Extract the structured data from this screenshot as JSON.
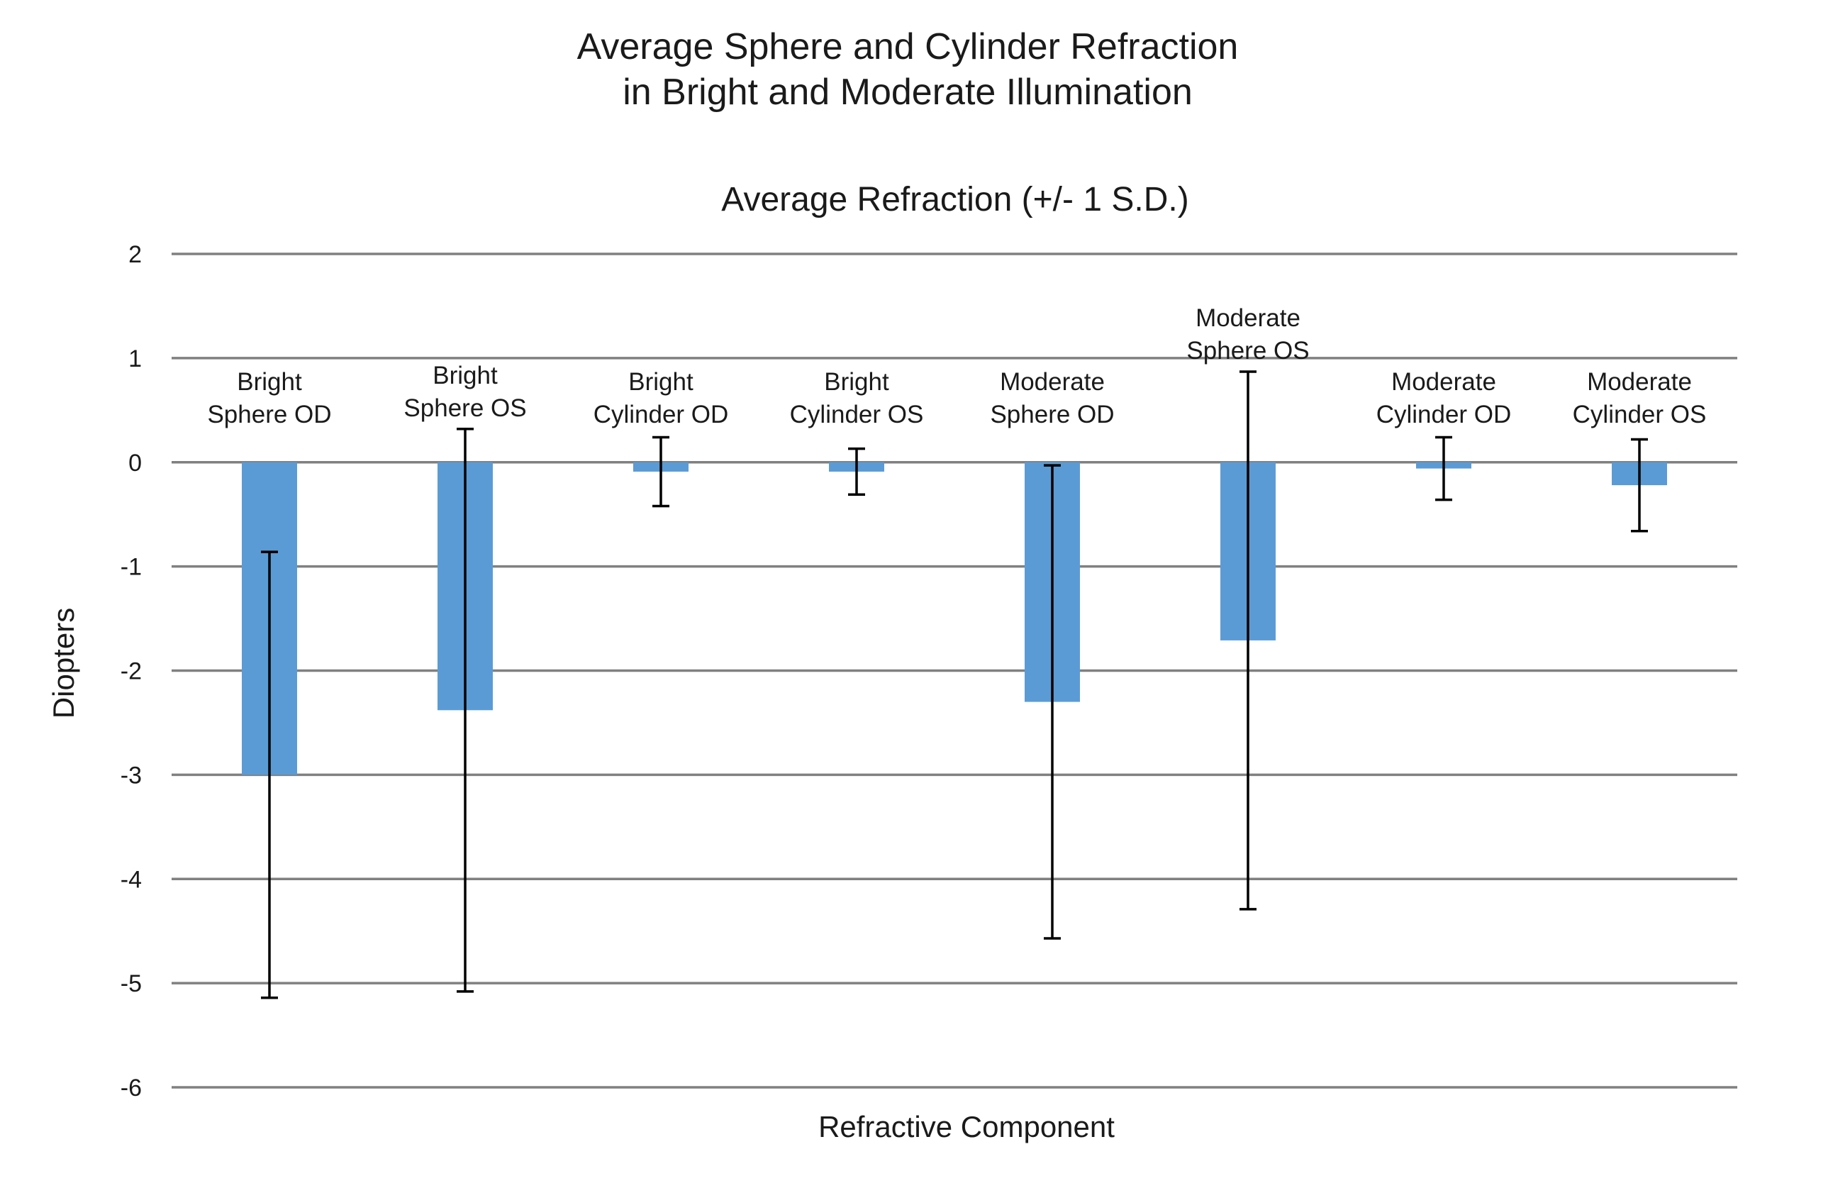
{
  "chart_data": {
    "type": "bar",
    "title": [
      "Average Sphere and Cylinder Refraction",
      "in Bright and Moderate Illumination"
    ],
    "subtitle": "Average Refraction (+/- 1 S.D.)",
    "xlabel": "Refractive Component",
    "ylabel": "Diopters",
    "ylim": [
      -6,
      2
    ],
    "yticks": [
      2,
      1,
      0,
      -1,
      -2,
      -3,
      -4,
      -5,
      -6
    ],
    "grid": true,
    "bar_color": "#5b9bd5",
    "error_color": "#000000",
    "grid_color": "#808080",
    "categories": [
      [
        "Bright",
        "Sphere OD"
      ],
      [
        "Bright",
        "Sphere OS"
      ],
      [
        "Bright",
        "Cylinder OD"
      ],
      [
        "Bright",
        "Cylinder OS"
      ],
      [
        "Moderate",
        "Sphere OD"
      ],
      [
        "Moderate",
        "Sphere OS"
      ],
      [
        "Moderate",
        "Cylinder OD"
      ],
      [
        "Moderate",
        "Cylinder OS"
      ]
    ],
    "values": [
      -3.0,
      -2.38,
      -0.09,
      -0.09,
      -2.3,
      -1.71,
      -0.06,
      -0.22
    ],
    "sd": [
      2.14,
      2.7,
      0.33,
      0.22,
      2.27,
      2.58,
      0.3,
      0.44
    ]
  }
}
